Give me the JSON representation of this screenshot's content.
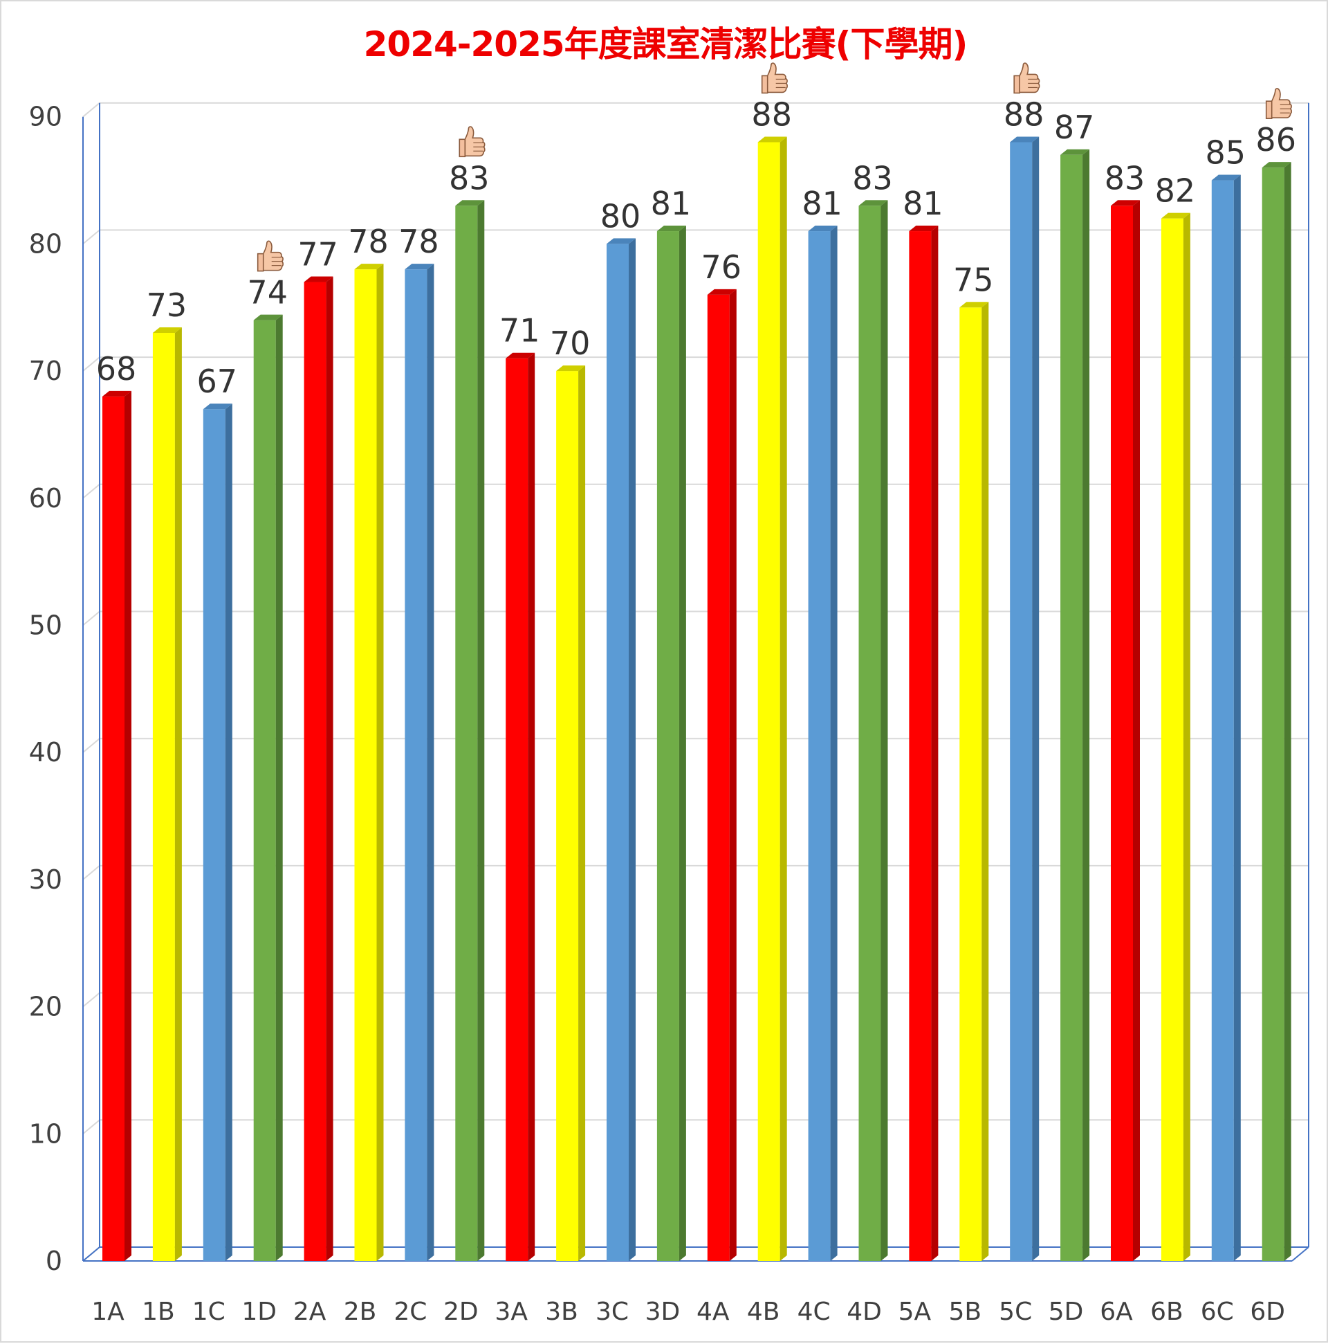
{
  "chart_data": {
    "type": "bar",
    "title": "2024-2025年度課室清潔比賽(下學期)",
    "xlabel": "",
    "ylabel": "",
    "ylim": [
      0,
      90
    ],
    "yticks": [
      0,
      10,
      20,
      30,
      40,
      50,
      60,
      70,
      80,
      90
    ],
    "grid": true,
    "legend": "none",
    "categories": [
      "1A",
      "1B",
      "1C",
      "1D",
      "2A",
      "2B",
      "2C",
      "2D",
      "3A",
      "3B",
      "3C",
      "3D",
      "4A",
      "4B",
      "4C",
      "4D",
      "5A",
      "5B",
      "5C",
      "5D",
      "6A",
      "6B",
      "6C",
      "6D"
    ],
    "values": [
      68,
      73,
      67,
      74,
      77,
      78,
      78,
      83,
      71,
      70,
      80,
      81,
      76,
      88,
      81,
      83,
      81,
      75,
      88,
      87,
      83,
      82,
      85,
      86
    ],
    "bar_colors": [
      "red",
      "yellow",
      "blue",
      "green",
      "red",
      "yellow",
      "blue",
      "green",
      "red",
      "yellow",
      "blue",
      "green",
      "red",
      "yellow",
      "blue",
      "green",
      "red",
      "yellow",
      "blue",
      "green",
      "red",
      "yellow",
      "blue",
      "green"
    ],
    "palette": {
      "red": {
        "face": "#ff0000",
        "side": "#b50000",
        "top": "#cc0000"
      },
      "yellow": {
        "face": "#ffff00",
        "side": "#b8b800",
        "top": "#cfcf00"
      },
      "blue": {
        "face": "#5b9bd5",
        "side": "#3d6f9e",
        "top": "#4a84bb"
      },
      "green": {
        "face": "#70ad47",
        "side": "#4c7a30",
        "top": "#5d933b"
      }
    },
    "award_icon": "thumbs-up-icon",
    "awarded_categories": [
      "1D",
      "2D",
      "4B",
      "5C",
      "6D"
    ]
  }
}
